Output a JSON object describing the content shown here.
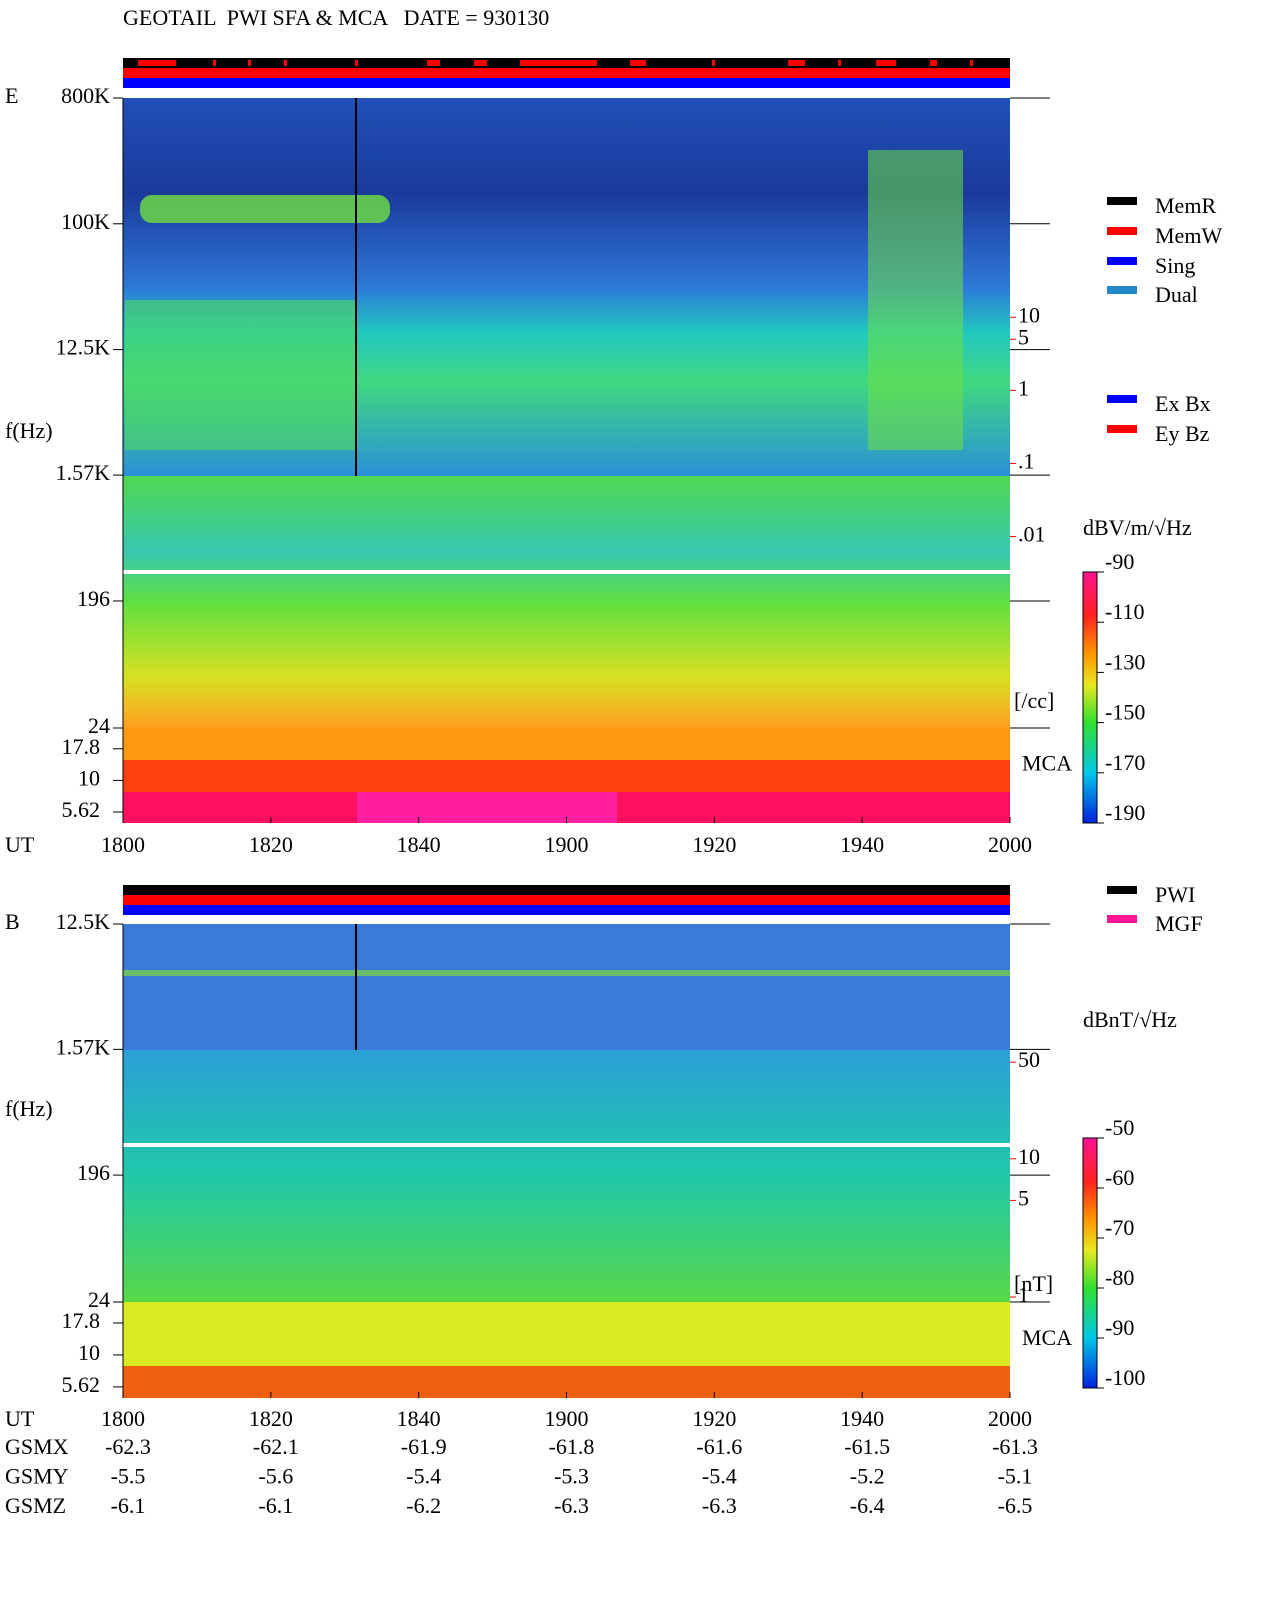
{
  "title": "GEOTAIL  PWI SFA & MCA   DATE = 930130",
  "chart_data": [
    {
      "type": "spectrogram",
      "label": "E",
      "ylabel": "f(Hz)",
      "xlabel": "UT",
      "log_y": true,
      "ylim": [
        24,
        800000
      ],
      "yticks": [
        {
          "value": 800000,
          "label": "800K"
        },
        {
          "value": 100000,
          "label": "100K"
        },
        {
          "value": 12500,
          "label": "12.5K"
        },
        {
          "value": 1570,
          "label": "1.57K"
        },
        196,
        24
      ],
      "mca_label": "MCA",
      "mca_ylim": [
        4.6,
        26
      ],
      "mca_ticks": [
        17.8,
        10,
        5.62
      ],
      "xticks": [
        "1800",
        "1820",
        "1840",
        "1900",
        "1920",
        "1940",
        "2000"
      ],
      "y2lim": [
        2.4e-05,
        10000
      ],
      "y2label": "[/cc]",
      "y2ticks": [
        10,
        5,
        1,
        {
          "value": 0.1,
          "label": ".1"
        },
        {
          "value": 0.01,
          "label": ".01"
        }
      ],
      "colorbar": {
        "label": "dBV/m/√Hz",
        "lim": [
          -190,
          -90
        ],
        "ticks": [
          -90,
          -110,
          -130,
          -150,
          -170,
          -190
        ]
      },
      "legend": [
        {
          "name": "MemR",
          "color": "#000000"
        },
        {
          "name": "MemW",
          "color": "#ff0000"
        },
        {
          "name": "Sing",
          "color": "#0000ff"
        },
        {
          "name": "Dual",
          "color": "#1e88c8"
        },
        {
          "name": "Ex Bx",
          "color": "#0000ff"
        },
        {
          "name": "Ey Bz",
          "color": "#ff0000"
        }
      ]
    },
    {
      "type": "spectrogram",
      "label": "B",
      "ylabel": "f(Hz)",
      "xlabel": "UT",
      "log_y": true,
      "ylim": [
        24,
        12500
      ],
      "yticks": [
        {
          "value": 12500,
          "label": "12.5K"
        },
        {
          "value": 1570,
          "label": "1.57K"
        },
        196,
        24
      ],
      "mca_label": "MCA",
      "mca_ylim": [
        4.6,
        26
      ],
      "mca_ticks": [
        17.8,
        10,
        5.62
      ],
      "xticks": [
        "1800",
        "1820",
        "1840",
        "1900",
        "1920",
        "1940",
        "2000"
      ],
      "y2lim": [
        0.92,
        500
      ],
      "y2label": "[nT]",
      "y2ticks": [
        50,
        10,
        5,
        1
      ],
      "colorbar": {
        "label": "dBnT/√Hz",
        "lim": [
          -100,
          -50
        ],
        "ticks": [
          -50,
          -60,
          -70,
          -80,
          -90,
          -100
        ]
      },
      "legend": [
        {
          "name": "PWI",
          "color": "#000000"
        },
        {
          "name": "MGF",
          "color": "#ff1493"
        }
      ]
    }
  ],
  "orbit": [
    {
      "label": "GSMX",
      "values": [
        -62.3,
        -62.1,
        -61.9,
        -61.8,
        -61.6,
        -61.5,
        -61.3
      ]
    },
    {
      "label": "GSMY",
      "values": [
        -5.5,
        -5.6,
        -5.4,
        -5.3,
        -5.4,
        -5.2,
        -5.1
      ]
    },
    {
      "label": "GSMZ",
      "values": [
        -6.1,
        -6.1,
        -6.2,
        -6.3,
        -6.3,
        -6.4,
        -6.5
      ]
    }
  ]
}
